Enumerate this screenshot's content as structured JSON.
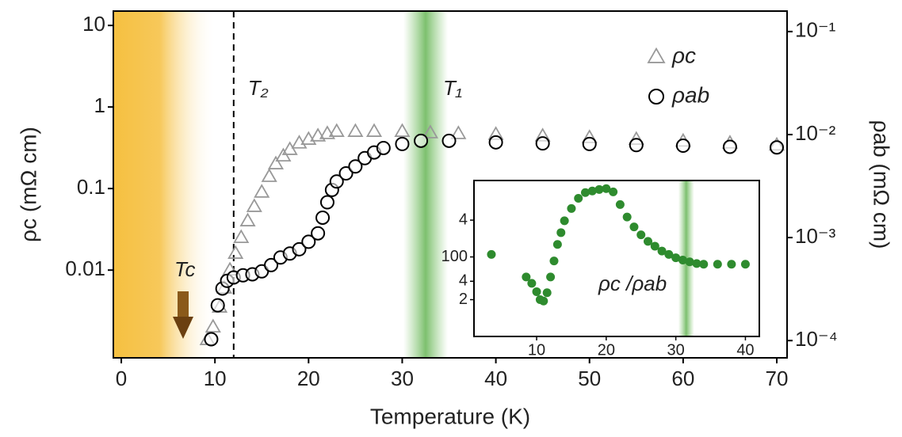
{
  "chart_data": [
    {
      "type": "scatter",
      "x_label": "Temperature (K)",
      "y_label": "ρc (mΩ cm)",
      "y2_label": "ρab (mΩ cm)",
      "xlim": [
        -0.85,
        71.1
      ],
      "xticks": [
        0,
        10,
        20,
        30,
        40,
        50,
        60,
        70
      ],
      "ylim": [
        0.00084,
        15
      ],
      "yticks": [
        10,
        1,
        0.1,
        0.01
      ],
      "ylog": true,
      "y2lim": [
        6.8e-05,
        0.158
      ],
      "y2log": true,
      "y2ticks": [
        {
          "value": 0.1,
          "label": "10⁻¹"
        },
        {
          "value": 0.01,
          "label": "10⁻²"
        },
        {
          "value": 0.001,
          "label": "10⁻³"
        },
        {
          "value": 0.0001,
          "label": "10⁻⁴"
        }
      ],
      "legend": "upper right",
      "annotations": [
        {
          "text": "T₂",
          "x": 12
        },
        {
          "text": "T₁",
          "x": 32.5
        },
        {
          "text": "Tc"
        }
      ],
      "series": [
        {
          "name": "ρc",
          "color": "#999999",
          "marker": "triangle",
          "axis": "y",
          "x": [
            9.2,
            9.8,
            10.5,
            11,
            11.6,
            12.2,
            12.8,
            13.5,
            14.2,
            15,
            15.8,
            16.5,
            17.3,
            18,
            19,
            20,
            21,
            22,
            23,
            25,
            27,
            30,
            33,
            36,
            40,
            45,
            50,
            55,
            60,
            65,
            70
          ],
          "values": [
            0.0014,
            0.002,
            0.0035,
            0.006,
            0.01,
            0.016,
            0.025,
            0.04,
            0.06,
            0.09,
            0.14,
            0.2,
            0.25,
            0.3,
            0.36,
            0.4,
            0.44,
            0.47,
            0.5,
            0.5,
            0.5,
            0.5,
            0.48,
            0.47,
            0.46,
            0.44,
            0.42,
            0.4,
            0.38,
            0.36,
            0.34
          ]
        },
        {
          "name": "ρab",
          "color": "#000000",
          "marker": "circle",
          "axis": "y2",
          "x": [
            9.6,
            10.3,
            10.8,
            11.3,
            12,
            13,
            14,
            15,
            16,
            17,
            18,
            19,
            20,
            21,
            21.5,
            22,
            22.5,
            23,
            24,
            25,
            26,
            27,
            28,
            30,
            32,
            35,
            40,
            45,
            50,
            55,
            60,
            65,
            70
          ],
          "values": [
            0.000103,
            0.00022,
            0.00032,
            0.00038,
            0.00041,
            0.00043,
            0.00044,
            0.00047,
            0.00054,
            0.00064,
            0.0007,
            0.00077,
            0.00091,
            0.0011,
            0.00156,
            0.0022,
            0.0029,
            0.0035,
            0.0042,
            0.0049,
            0.0059,
            0.0067,
            0.0074,
            0.0081,
            0.0087,
            0.0087,
            0.0084,
            0.0082,
            0.0081,
            0.0079,
            0.0078,
            0.0076,
            0.0075
          ]
        }
      ]
    },
    {
      "type": "scatter",
      "label": "ρc /ρab",
      "xlim": [
        1,
        42
      ],
      "xticks": [
        10,
        20,
        30,
        40
      ],
      "ylim": [
        5,
        1780
      ],
      "ylog": true,
      "yticks": [
        {
          "value": 400,
          "label": "4"
        },
        100,
        {
          "value": 40,
          "label": "4"
        },
        {
          "value": 20,
          "label": "2"
        }
      ],
      "color": "#2e8b2e",
      "x": [
        3.5,
        8.5,
        9.3,
        10,
        10.5,
        11,
        11.5,
        12,
        12.5,
        13,
        13.5,
        14,
        15,
        16,
        17,
        18,
        19,
        20,
        21,
        22,
        23,
        24,
        25,
        26,
        27,
        28,
        29,
        30,
        31,
        32,
        33,
        34,
        36,
        38,
        40
      ],
      "values": [
        110,
        47,
        37,
        27,
        20,
        19,
        26,
        47,
        86,
        160,
        250,
        390,
        620,
        910,
        1130,
        1200,
        1270,
        1310,
        1160,
        720,
        450,
        310,
        230,
        180,
        150,
        125,
        110,
        97,
        89,
        83,
        78,
        76,
        76,
        76,
        76
      ]
    }
  ]
}
